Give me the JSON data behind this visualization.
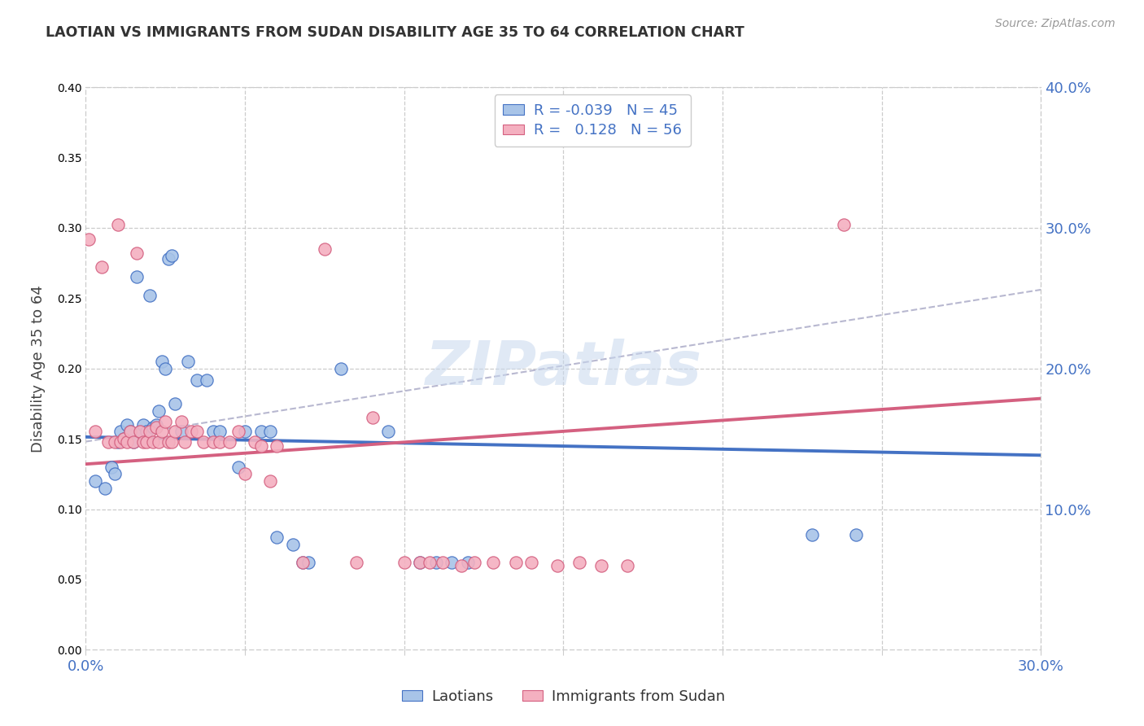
{
  "title": "LAOTIAN VS IMMIGRANTS FROM SUDAN DISABILITY AGE 35 TO 64 CORRELATION CHART",
  "source": "Source: ZipAtlas.com",
  "ylabel": "Disability Age 35 to 64",
  "xlim": [
    0.0,
    0.3
  ],
  "ylim": [
    0.0,
    0.4
  ],
  "color_blue": "#a8c4e8",
  "color_pink": "#f4b0c0",
  "line_blue": "#4472c4",
  "line_pink": "#d46080",
  "line_dashed": "#b8b8d0",
  "watermark_text": "ZIPatlas",
  "r_blue": -0.039,
  "n_blue": 45,
  "r_pink": 0.128,
  "n_pink": 56,
  "blue_x": [
    0.003,
    0.006,
    0.008,
    0.009,
    0.01,
    0.011,
    0.012,
    0.013,
    0.014,
    0.015,
    0.016,
    0.017,
    0.018,
    0.019,
    0.02,
    0.021,
    0.022,
    0.023,
    0.024,
    0.025,
    0.026,
    0.027,
    0.028,
    0.03,
    0.032,
    0.035,
    0.038,
    0.04,
    0.042,
    0.048,
    0.05,
    0.055,
    0.058,
    0.06,
    0.065,
    0.068,
    0.07,
    0.08,
    0.095,
    0.105,
    0.11,
    0.115,
    0.12,
    0.228,
    0.242
  ],
  "blue_y": [
    0.12,
    0.115,
    0.13,
    0.125,
    0.148,
    0.155,
    0.15,
    0.16,
    0.155,
    0.148,
    0.265,
    0.155,
    0.16,
    0.155,
    0.252,
    0.158,
    0.16,
    0.17,
    0.205,
    0.2,
    0.278,
    0.28,
    0.175,
    0.155,
    0.205,
    0.192,
    0.192,
    0.155,
    0.155,
    0.13,
    0.155,
    0.155,
    0.155,
    0.08,
    0.075,
    0.062,
    0.062,
    0.2,
    0.155,
    0.062,
    0.062,
    0.062,
    0.062,
    0.082,
    0.082
  ],
  "pink_x": [
    0.001,
    0.003,
    0.005,
    0.007,
    0.009,
    0.01,
    0.011,
    0.012,
    0.013,
    0.014,
    0.015,
    0.016,
    0.017,
    0.018,
    0.019,
    0.02,
    0.021,
    0.022,
    0.023,
    0.024,
    0.025,
    0.026,
    0.027,
    0.028,
    0.03,
    0.031,
    0.033,
    0.035,
    0.037,
    0.04,
    0.042,
    0.045,
    0.048,
    0.05,
    0.053,
    0.055,
    0.058,
    0.06,
    0.068,
    0.075,
    0.085,
    0.09,
    0.1,
    0.105,
    0.108,
    0.112,
    0.118,
    0.122,
    0.128,
    0.135,
    0.14,
    0.148,
    0.155,
    0.162,
    0.17,
    0.238
  ],
  "pink_y": [
    0.292,
    0.155,
    0.272,
    0.148,
    0.148,
    0.302,
    0.148,
    0.15,
    0.148,
    0.155,
    0.148,
    0.282,
    0.155,
    0.148,
    0.148,
    0.155,
    0.148,
    0.158,
    0.148,
    0.155,
    0.162,
    0.148,
    0.148,
    0.155,
    0.162,
    0.148,
    0.155,
    0.155,
    0.148,
    0.148,
    0.148,
    0.148,
    0.155,
    0.125,
    0.148,
    0.145,
    0.12,
    0.145,
    0.062,
    0.285,
    0.062,
    0.165,
    0.062,
    0.062,
    0.062,
    0.062,
    0.06,
    0.062,
    0.062,
    0.062,
    0.062,
    0.06,
    0.062,
    0.06,
    0.06,
    0.302
  ]
}
